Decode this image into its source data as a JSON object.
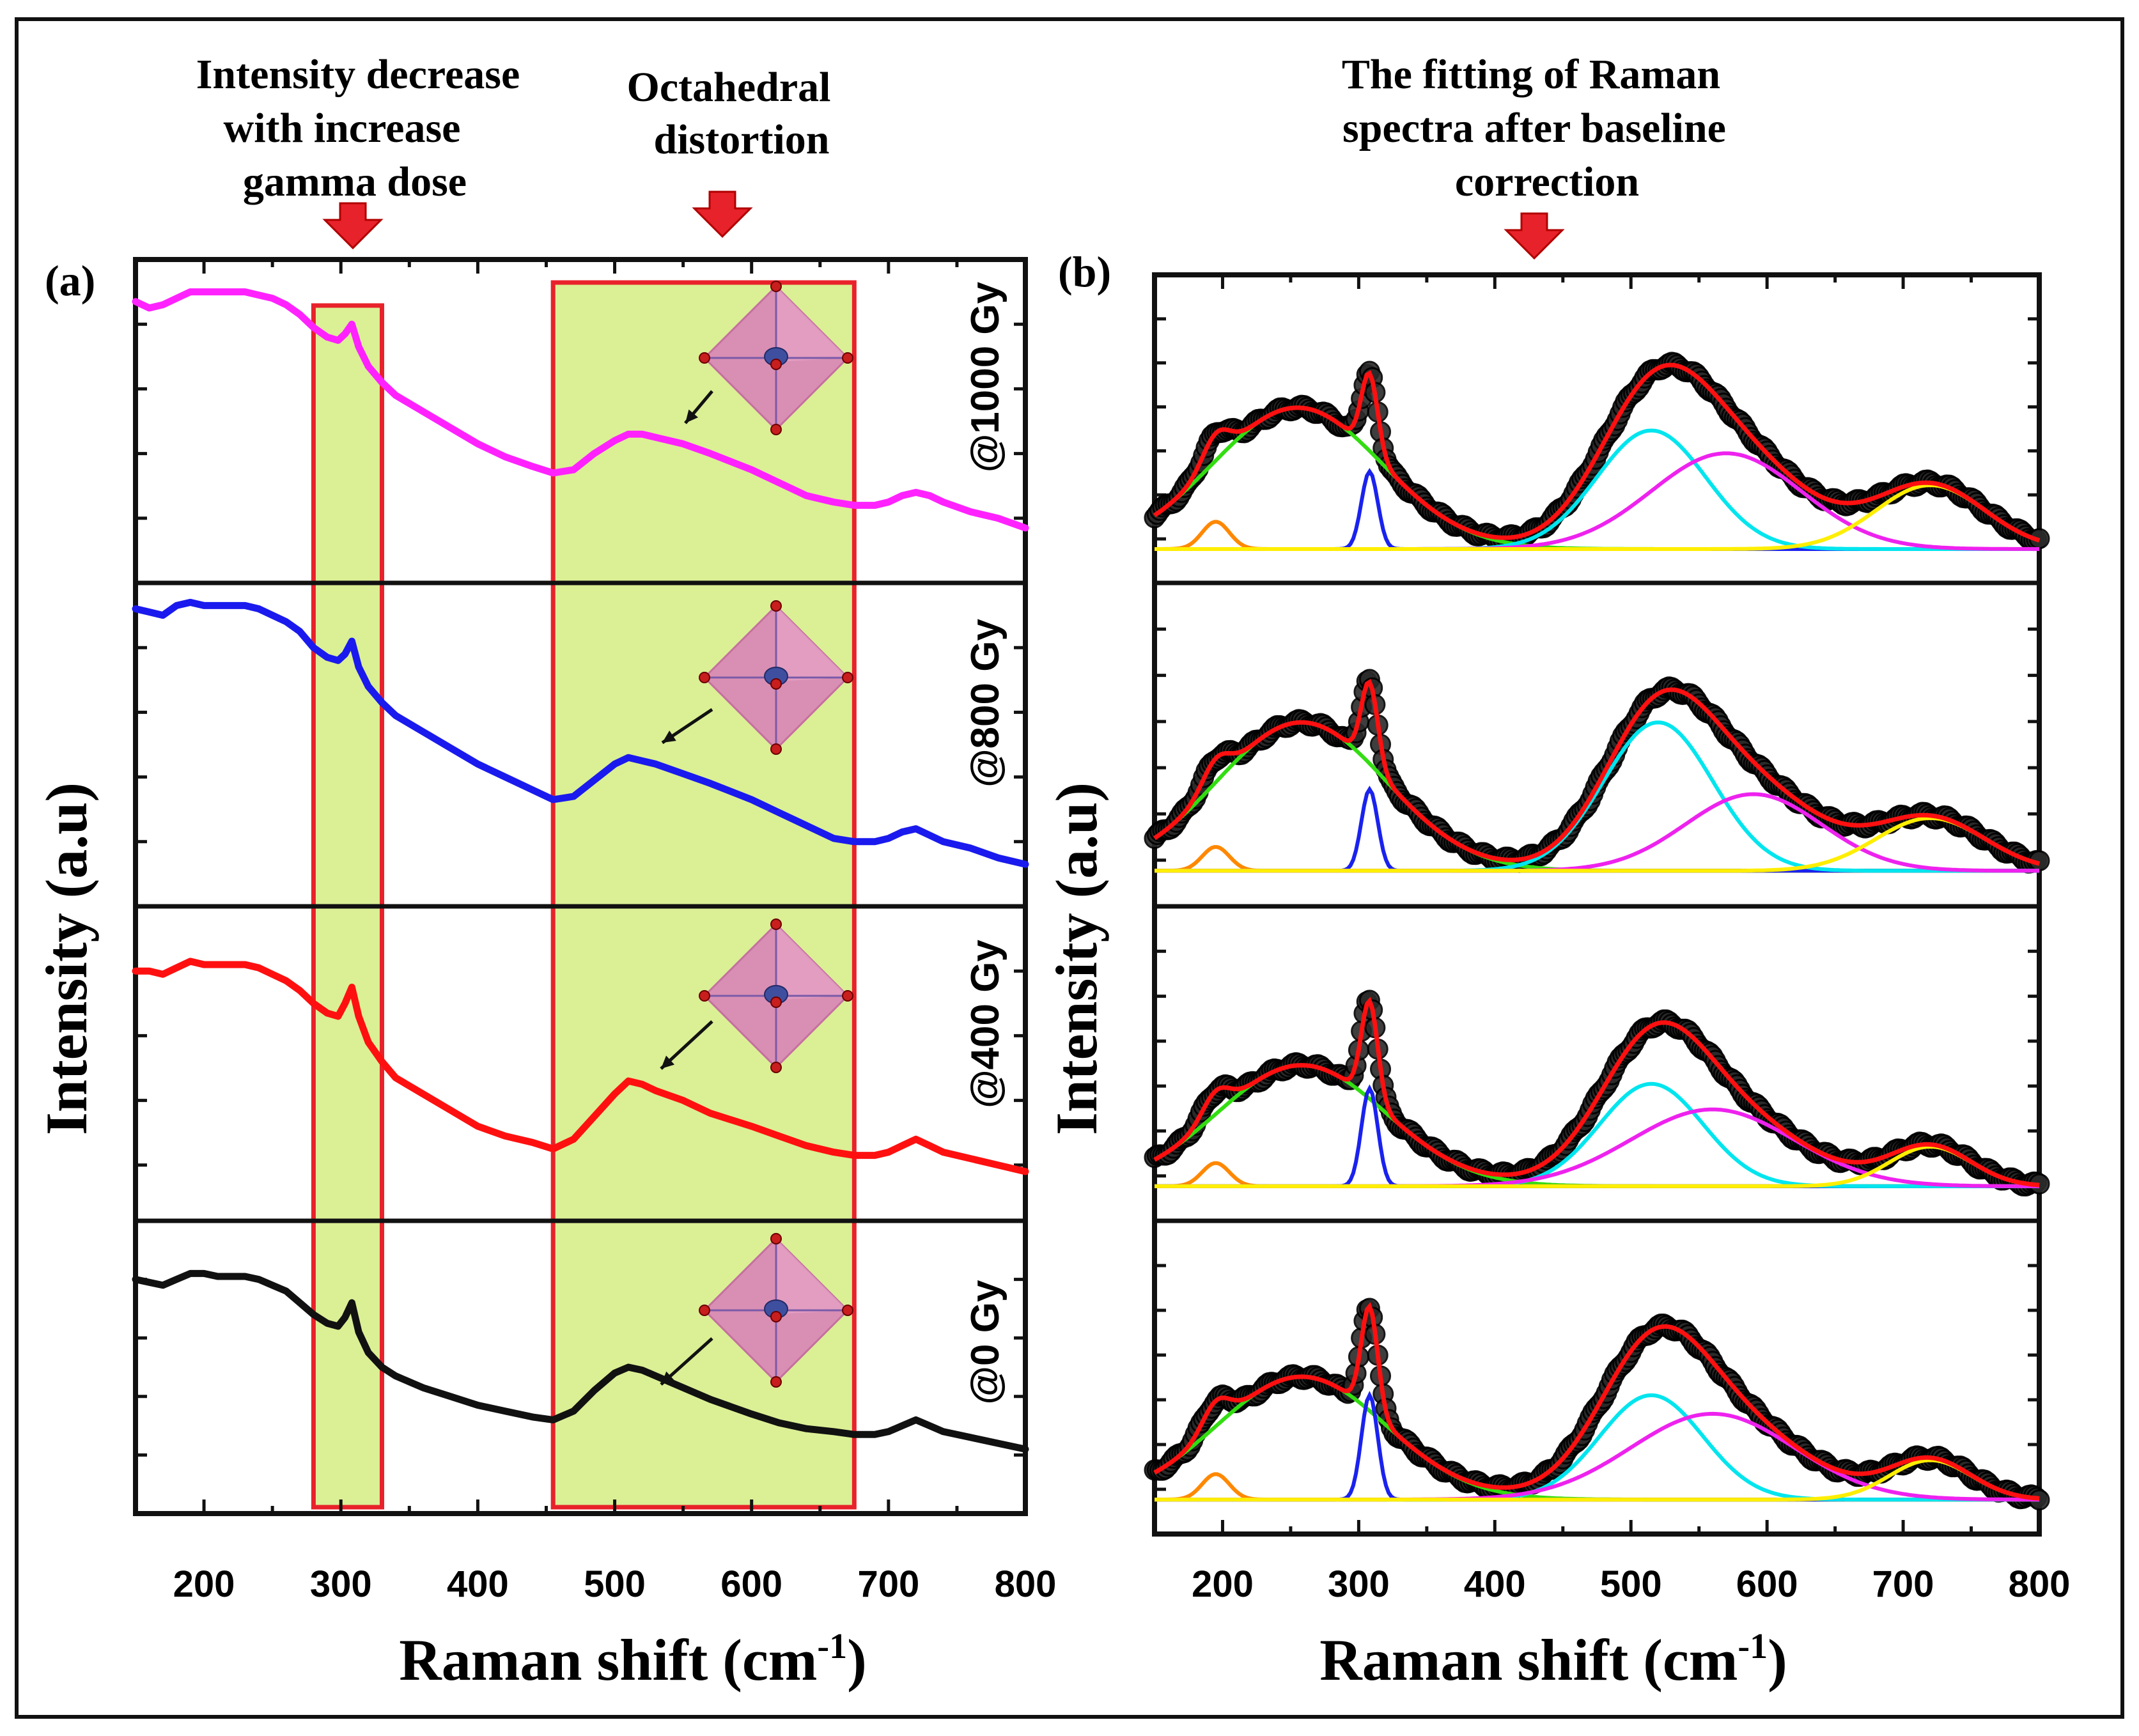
{
  "figure": {
    "annotations": {
      "intensity_decrease": [
        "Intensity decrease",
        "with increase",
        "gamma dose"
      ],
      "octahedral": [
        "Octahedral",
        "distortion"
      ],
      "fitting": [
        "The fitting of Raman",
        "spectra after baseline",
        "correction"
      ]
    }
  },
  "colors": {
    "highlight_fill": "#dbef95",
    "highlight_border": "#e8222a",
    "arrow_fill": "#e8222a",
    "fit_total": "#ff1010",
    "fit_baseline": "#ffee00",
    "fit_broad": "#33dd11",
    "fit_peak_195": "#ff8800",
    "fit_peak_308": "#1a22ee",
    "fit_peak_515": "#00e5ee",
    "fit_peak_570": "#ee22ee",
    "fit_peak_720": "#ffee00"
  },
  "chart_data": [
    {
      "panel": "(a)",
      "type": "line",
      "xlabel": "Raman shift (cm",
      "xlabel_sup": "-1",
      "xlabel_close": ")",
      "ylabel": "Intensity (a.u)",
      "xlim": [
        150,
        800
      ],
      "xticks": [
        200,
        300,
        400,
        500,
        600,
        700,
        800
      ],
      "highlight_ranges": [
        [
          280,
          330
        ],
        [
          455,
          675
        ]
      ],
      "series": [
        {
          "name": "@1000 Gy",
          "color": "#ff22ff",
          "x": [
            150,
            160,
            170,
            180,
            190,
            200,
            210,
            220,
            230,
            240,
            250,
            260,
            270,
            280,
            290,
            298,
            303,
            308,
            313,
            320,
            330,
            340,
            360,
            380,
            400,
            420,
            440,
            455,
            470,
            485,
            500,
            510,
            520,
            530,
            550,
            570,
            600,
            620,
            640,
            660,
            675,
            690,
            700,
            710,
            720,
            730,
            740,
            760,
            780,
            800
          ],
          "y": [
            0.87,
            0.85,
            0.86,
            0.88,
            0.9,
            0.9,
            0.9,
            0.9,
            0.9,
            0.89,
            0.88,
            0.86,
            0.83,
            0.79,
            0.76,
            0.75,
            0.77,
            0.8,
            0.73,
            0.67,
            0.62,
            0.58,
            0.53,
            0.48,
            0.43,
            0.39,
            0.36,
            0.34,
            0.35,
            0.4,
            0.44,
            0.46,
            0.46,
            0.45,
            0.43,
            0.4,
            0.35,
            0.31,
            0.27,
            0.25,
            0.24,
            0.24,
            0.25,
            0.27,
            0.28,
            0.27,
            0.25,
            0.22,
            0.2,
            0.17
          ]
        },
        {
          "name": "@800 Gy",
          "color": "#1a1aee",
          "x": [
            150,
            160,
            170,
            180,
            190,
            200,
            210,
            220,
            230,
            240,
            250,
            260,
            270,
            280,
            290,
            298,
            303,
            308,
            313,
            320,
            330,
            340,
            360,
            380,
            400,
            420,
            440,
            455,
            470,
            485,
            500,
            510,
            520,
            530,
            550,
            570,
            600,
            620,
            640,
            660,
            675,
            690,
            700,
            710,
            720,
            730,
            740,
            760,
            780,
            800
          ],
          "y": [
            0.92,
            0.91,
            0.9,
            0.93,
            0.94,
            0.93,
            0.93,
            0.93,
            0.93,
            0.92,
            0.9,
            0.88,
            0.85,
            0.8,
            0.77,
            0.76,
            0.78,
            0.82,
            0.74,
            0.68,
            0.63,
            0.59,
            0.54,
            0.49,
            0.44,
            0.4,
            0.36,
            0.33,
            0.34,
            0.39,
            0.44,
            0.46,
            0.45,
            0.44,
            0.41,
            0.38,
            0.33,
            0.29,
            0.25,
            0.21,
            0.2,
            0.2,
            0.21,
            0.23,
            0.24,
            0.22,
            0.2,
            0.18,
            0.15,
            0.13
          ]
        },
        {
          "name": "@400 Gy",
          "color": "#ff1010",
          "x": [
            150,
            160,
            170,
            180,
            190,
            200,
            210,
            220,
            230,
            240,
            250,
            260,
            270,
            280,
            290,
            298,
            303,
            308,
            313,
            320,
            330,
            340,
            360,
            380,
            400,
            420,
            440,
            455,
            470,
            485,
            500,
            510,
            520,
            530,
            550,
            570,
            600,
            620,
            640,
            660,
            675,
            690,
            700,
            710,
            720,
            730,
            740,
            760,
            780,
            800
          ],
          "y": [
            0.8,
            0.8,
            0.79,
            0.81,
            0.83,
            0.82,
            0.82,
            0.82,
            0.82,
            0.81,
            0.79,
            0.77,
            0.74,
            0.7,
            0.67,
            0.66,
            0.7,
            0.75,
            0.66,
            0.58,
            0.52,
            0.47,
            0.42,
            0.37,
            0.32,
            0.29,
            0.27,
            0.25,
            0.28,
            0.35,
            0.42,
            0.46,
            0.45,
            0.43,
            0.4,
            0.36,
            0.32,
            0.29,
            0.26,
            0.24,
            0.23,
            0.23,
            0.24,
            0.26,
            0.28,
            0.26,
            0.24,
            0.22,
            0.2,
            0.18
          ]
        },
        {
          "name": "@0 Gy",
          "color": "#111111",
          "x": [
            150,
            160,
            170,
            180,
            190,
            200,
            210,
            220,
            230,
            240,
            250,
            260,
            270,
            280,
            290,
            298,
            303,
            308,
            313,
            320,
            330,
            340,
            360,
            380,
            400,
            420,
            440,
            455,
            470,
            485,
            500,
            510,
            520,
            530,
            550,
            570,
            600,
            620,
            640,
            660,
            675,
            690,
            700,
            710,
            720,
            730,
            740,
            760,
            780,
            800
          ],
          "y": [
            0.8,
            0.79,
            0.78,
            0.8,
            0.82,
            0.82,
            0.81,
            0.81,
            0.81,
            0.8,
            0.78,
            0.76,
            0.72,
            0.68,
            0.65,
            0.64,
            0.67,
            0.72,
            0.62,
            0.55,
            0.5,
            0.47,
            0.43,
            0.4,
            0.37,
            0.35,
            0.33,
            0.32,
            0.35,
            0.42,
            0.48,
            0.5,
            0.49,
            0.47,
            0.43,
            0.39,
            0.34,
            0.31,
            0.29,
            0.28,
            0.27,
            0.27,
            0.28,
            0.3,
            0.32,
            0.3,
            0.28,
            0.26,
            0.24,
            0.22
          ]
        }
      ]
    },
    {
      "panel": "(b)",
      "type": "line",
      "xlabel": "Raman shift (cm",
      "xlabel_sup": "-1",
      "xlabel_close": ")",
      "ylabel": "Intensity (a.u)",
      "xlim": [
        150,
        800
      ],
      "xticks": [
        200,
        300,
        400,
        500,
        600,
        700,
        800
      ],
      "legend_position": "none",
      "component_colors": [
        "#33dd11",
        "#ff8800",
        "#1a22ee",
        "#00e5ee",
        "#ee22ee",
        "#ffee00"
      ],
      "panels": [
        {
          "name": "@1000 Gy",
          "peaks": [
            [
              255,
              0.62,
              62
            ],
            [
              195,
              0.12,
              10
            ],
            [
              308,
              0.34,
              6
            ],
            [
              515,
              0.52,
              40
            ],
            [
              570,
              0.42,
              55
            ],
            [
              720,
              0.28,
              40
            ]
          ]
        },
        {
          "name": "@800 Gy",
          "peaks": [
            [
              258,
              0.62,
              62
            ],
            [
              195,
              0.1,
              10
            ],
            [
              308,
              0.34,
              6
            ],
            [
              520,
              0.62,
              40
            ],
            [
              590,
              0.32,
              50
            ],
            [
              720,
              0.22,
              40
            ]
          ]
        },
        {
          "name": "@400 Gy",
          "peaks": [
            [
              258,
              0.52,
              62
            ],
            [
              195,
              0.1,
              10
            ],
            [
              308,
              0.42,
              6
            ],
            [
              515,
              0.44,
              38
            ],
            [
              560,
              0.33,
              60
            ],
            [
              720,
              0.17,
              30
            ]
          ]
        },
        {
          "name": "@0 Gy",
          "peaks": [
            [
              258,
              0.53,
              62
            ],
            [
              195,
              0.11,
              10
            ],
            [
              308,
              0.45,
              6
            ],
            [
              515,
              0.45,
              38
            ],
            [
              560,
              0.37,
              60
            ],
            [
              720,
              0.17,
              30
            ]
          ]
        }
      ]
    }
  ]
}
